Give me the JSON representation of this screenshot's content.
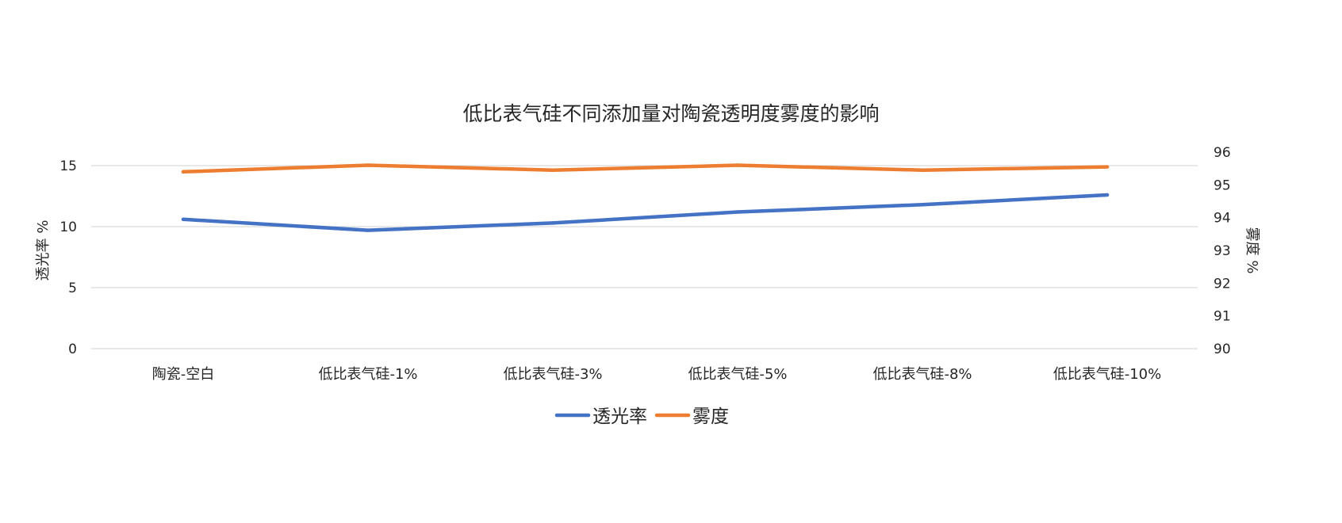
{
  "chart_data": {
    "type": "line",
    "title": "低比表气硅不同添加量对陶瓷透明度雾度的影响",
    "categories": [
      "陶瓷-空白",
      "低比表气硅-1%",
      "低比表气硅-3%",
      "低比表气硅-5%",
      "低比表气硅-8%",
      "低比表气硅-10%"
    ],
    "y_left": {
      "label": "透光率 %",
      "ticks": [
        0,
        5,
        10,
        15
      ],
      "range": [
        0,
        16
      ]
    },
    "y_right": {
      "label": "雾度 %",
      "ticks": [
        90,
        91,
        92,
        93,
        94,
        95,
        96
      ],
      "range": [
        90,
        96
      ]
    },
    "grid": true,
    "legend_position": "bottom",
    "series": [
      {
        "name": "透光率",
        "axis": "left",
        "color": "#4472C4",
        "values": [
          10.6,
          9.7,
          10.3,
          11.2,
          11.8,
          12.6
        ]
      },
      {
        "name": "雾度",
        "axis": "right",
        "color": "#ED7D31",
        "values": [
          95.4,
          95.6,
          95.45,
          95.6,
          95.45,
          95.55
        ]
      }
    ]
  }
}
